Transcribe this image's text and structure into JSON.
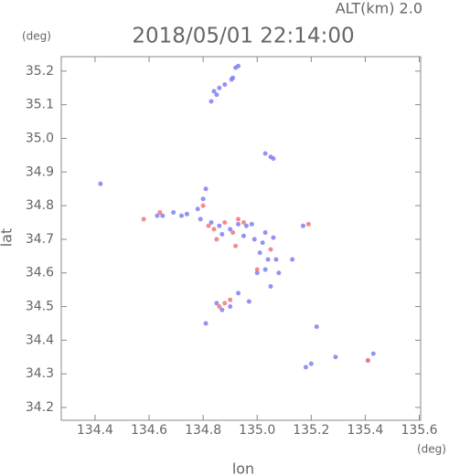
{
  "chart_data": {
    "type": "scatter",
    "title": "2018/05/01 22:14:00",
    "subtitle": "ALT(km) 2.0",
    "x_label": "lon",
    "y_label": "lat",
    "x_unit": "(deg)",
    "y_unit": "(deg)",
    "xlim": [
      134.275,
      135.605
    ],
    "ylim": [
      34.162,
      35.243
    ],
    "xticks": [
      134.4,
      134.6,
      134.8,
      {
        "value": 135.0,
        "label": "135.0"
      },
      135.2,
      135.4,
      135.6
    ],
    "yticks": [
      34.2,
      34.3,
      34.4,
      34.5,
      34.6,
      34.7,
      34.8,
      34.9,
      {
        "value": 35.0,
        "label": "35.0"
      },
      35.1,
      35.2
    ],
    "series": [
      {
        "color": "#8080ee",
        "x": [
          134.92,
          134.93,
          134.88,
          134.86,
          134.84,
          134.85,
          134.83,
          134.905,
          134.91,
          135.03,
          135.05,
          135.06,
          134.42,
          134.69,
          134.72,
          134.74,
          134.78,
          134.8,
          134.81,
          134.79,
          134.83,
          134.86,
          134.9,
          134.93,
          134.96,
          134.98,
          134.95,
          134.99,
          135.02,
          135.03,
          135.06,
          135.01,
          135.04,
          135.07,
          135.03,
          135.0,
          135.08,
          135.13,
          134.93,
          134.9,
          134.87,
          134.85,
          134.81,
          134.97,
          135.18,
          135.2,
          135.22,
          135.29,
          135.41,
          135.43,
          135.17,
          134.65,
          134.63,
          134.87,
          135.05
        ],
        "y": [
          35.21,
          35.215,
          35.16,
          35.15,
          35.14,
          35.13,
          35.11,
          35.175,
          35.18,
          34.955,
          34.945,
          34.94,
          34.865,
          34.78,
          34.77,
          34.775,
          34.79,
          34.82,
          34.85,
          34.76,
          34.75,
          34.74,
          34.73,
          34.745,
          34.74,
          34.745,
          34.71,
          34.7,
          34.69,
          34.72,
          34.705,
          34.66,
          34.64,
          34.64,
          34.61,
          34.6,
          34.6,
          34.64,
          34.54,
          34.5,
          34.49,
          34.51,
          34.45,
          34.515,
          34.32,
          34.33,
          34.44,
          34.35,
          34.34,
          34.36,
          34.74,
          34.77,
          34.77,
          34.715,
          34.56
        ]
      },
      {
        "color": "#f07878",
        "x": [
          134.58,
          134.64,
          134.8,
          134.82,
          134.84,
          134.85,
          134.88,
          134.91,
          134.93,
          134.95,
          135.0,
          135.05,
          134.88,
          134.9,
          134.86,
          135.41,
          135.19,
          134.92
        ],
        "y": [
          34.76,
          34.78,
          34.8,
          34.74,
          34.73,
          34.7,
          34.75,
          34.72,
          34.76,
          34.75,
          34.61,
          34.67,
          34.51,
          34.52,
          34.5,
          34.34,
          34.745,
          34.68
        ]
      }
    ]
  }
}
